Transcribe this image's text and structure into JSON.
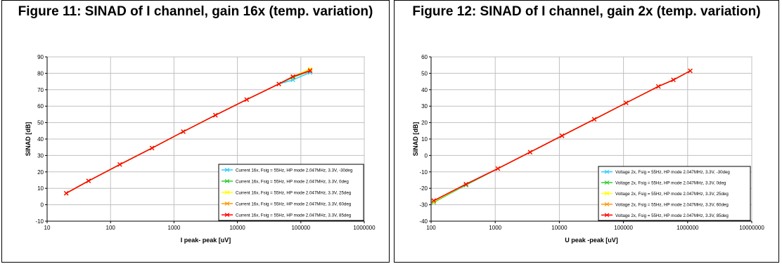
{
  "figures": [
    {
      "title": "Figure 11: SINAD of I channel, gain 16x (temp. variation)"
    },
    {
      "title": "Figure 12: SINAD of I channel, gain 2x (temp. variation)"
    }
  ],
  "chart_data": [
    {
      "type": "line",
      "title": "Figure 11: SINAD of I channel, gain 16x (temp. variation)",
      "xlabel": "I peak- peak [uV]",
      "ylabel": "SINAD [dB]",
      "xscale": "log",
      "xlim": [
        10,
        1000000
      ],
      "ylim": [
        -10,
        90
      ],
      "x_ticks": [
        "10",
        "100",
        "1000",
        "10000",
        "100000",
        "1000000"
      ],
      "y_ticks": [
        "-10",
        "0",
        "10",
        "20",
        "30",
        "40",
        "50",
        "60",
        "70",
        "80",
        "90"
      ],
      "grid": true,
      "legend_position": "bottom-right",
      "series": [
        {
          "name": "Current 16x, Fsig = 55Hz, HP mode 2.047MHz, 3.3V, -30deg",
          "color": "#33ccff",
          "x": [
            20,
            45,
            140,
            450,
            1400,
            4500,
            14000,
            45000,
            75000,
            140000
          ],
          "y": [
            7,
            14.5,
            24.5,
            34.5,
            44.5,
            54.5,
            64,
            73.5,
            76,
            80.5
          ]
        },
        {
          "name": "Current 16x, Fsig = 55Hz, HP mode 2.047MHz, 3.3V, 0deg",
          "color": "#33cc33",
          "x": [
            20,
            45,
            140,
            450,
            1400,
            4500,
            14000,
            45000,
            75000,
            140000
          ],
          "y": [
            7,
            14.5,
            24.5,
            34.5,
            44.5,
            54.5,
            64,
            73.5,
            77.5,
            81.5
          ]
        },
        {
          "name": "Current 16x, Fsig = 55Hz, HP mode 2.047MHz, 3.3V, 25deg",
          "color": "#ffff00",
          "x": [
            20,
            45,
            140,
            450,
            1400,
            4500,
            14000,
            45000,
            75000,
            140000
          ],
          "y": [
            7,
            14.5,
            24.5,
            34.5,
            44.5,
            54.5,
            64,
            73.5,
            78,
            82.5
          ]
        },
        {
          "name": "Current 16x, Fsig = 55Hz, HP mode 2.047MHz, 3.3V, 60deg",
          "color": "#ff9900",
          "x": [
            20,
            45,
            140,
            450,
            1400,
            4500,
            14000,
            45000,
            75000,
            140000
          ],
          "y": [
            7,
            14.5,
            24.5,
            34.5,
            44.5,
            54.5,
            64,
            73.5,
            78,
            82
          ]
        },
        {
          "name": "Current 16x, Fsig = 55Hz, HP mode 2.047MHz, 3.3V, 85deg",
          "color": "#ff0000",
          "x": [
            20,
            45,
            140,
            450,
            1400,
            4500,
            14000,
            45000,
            75000,
            140000
          ],
          "y": [
            7,
            14.5,
            24.5,
            34.5,
            44.5,
            54.5,
            64,
            73.5,
            78,
            81.5
          ]
        }
      ]
    },
    {
      "type": "line",
      "title": "Figure 12: SINAD of I channel, gain 2x (temp. variation)",
      "xlabel": "U peak -peak [uV]",
      "ylabel": "SINAD [dB]",
      "xscale": "log",
      "xlim": [
        100,
        10000000
      ],
      "ylim": [
        -40,
        60
      ],
      "x_ticks": [
        "100",
        "1000",
        "10000",
        "100000",
        "1000000",
        "10000000"
      ],
      "y_ticks": [
        "-40",
        "-30",
        "-20",
        "-10",
        "0",
        "10",
        "20",
        "30",
        "40",
        "50",
        "60"
      ],
      "grid": true,
      "legend_position": "bottom-right",
      "series": [
        {
          "name": "Voltage 2x, Fsig = 55Hz, HP mode 2.047MHz, 3.3V, -30deg",
          "color": "#33ccff",
          "x": [
            110,
            350,
            1100,
            3500,
            11000,
            35000,
            110000,
            350000,
            600000,
            1100000
          ],
          "y": [
            -28,
            -18,
            -8,
            2,
            12,
            22,
            32,
            42,
            46,
            51.5
          ]
        },
        {
          "name": "Voltage 2x, Fsig = 55Hz, HP mode 2.047MHz, 3.3V, 0deg",
          "color": "#33cc33",
          "x": [
            110,
            350,
            1100,
            3500,
            11000,
            35000,
            110000,
            350000,
            600000,
            1100000
          ],
          "y": [
            -28.5,
            -18,
            -8,
            2,
            12,
            22,
            32,
            42,
            46,
            51.5
          ]
        },
        {
          "name": "Voltage 2x, Fsig = 55Hz, HP mode 2.047MHz, 3.3V, 25deg",
          "color": "#ffff00",
          "x": [
            110,
            350,
            1100,
            3500,
            11000,
            35000,
            110000,
            350000,
            600000,
            1100000
          ],
          "y": [
            -28,
            -17.5,
            -8,
            2,
            12,
            22,
            32,
            42,
            46,
            51.5
          ]
        },
        {
          "name": "Voltage 2x, Fsig = 55Hz, HP mode 2.047MHz, 3.3V, 60deg",
          "color": "#ff9900",
          "x": [
            110,
            350,
            1100,
            3500,
            11000,
            35000,
            110000,
            350000,
            600000,
            1100000
          ],
          "y": [
            -27.5,
            -17.5,
            -8,
            2,
            12,
            22,
            32,
            42,
            46,
            51.5
          ]
        },
        {
          "name": "Voltage 2x, Fsig = 55Hz, HP mode 2.047MHz, 3.3V, 85deg",
          "color": "#ff0000",
          "x": [
            110,
            350,
            1100,
            3500,
            11000,
            35000,
            110000,
            350000,
            600000,
            1100000
          ],
          "y": [
            -27.5,
            -17.5,
            -8,
            2,
            12,
            22,
            32,
            42,
            46,
            51.5
          ]
        }
      ]
    }
  ]
}
